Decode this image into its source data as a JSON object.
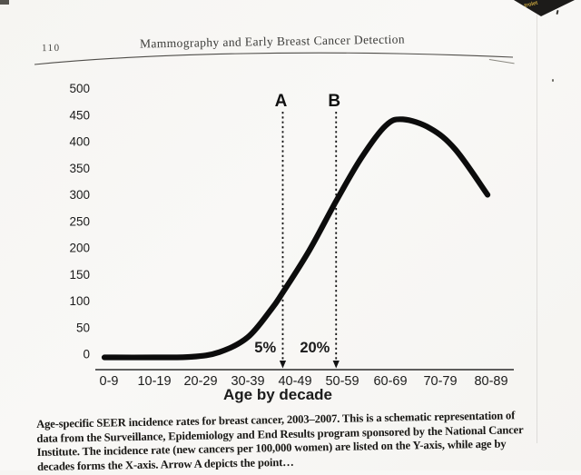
{
  "page": {
    "number": "110",
    "running_header": "Mammography and Early Breast Cancer Detection"
  },
  "chart_data": {
    "type": "line",
    "title": "",
    "xlabel": "Age by decade",
    "ylabel": "",
    "categories": [
      "0-9",
      "10-19",
      "20-29",
      "30-39",
      "40-49",
      "50-59",
      "60-69",
      "70-79",
      "80-89"
    ],
    "yticks": [
      0,
      50,
      100,
      150,
      200,
      250,
      300,
      350,
      400,
      450,
      500
    ],
    "ylim": [
      0,
      500
    ],
    "grid": false,
    "legend": "none",
    "series": [
      {
        "name": "Age-specific SEER breast cancer incidence rate (new cancers per 100,000 women)",
        "points": [
          [
            -0.1,
            -6
          ],
          [
            1,
            -6
          ],
          [
            1.8,
            -5
          ],
          [
            2.4,
            4
          ],
          [
            3,
            32
          ],
          [
            3.5,
            85
          ],
          [
            3.74,
            116
          ],
          [
            4.3,
            195
          ],
          [
            4.87,
            288
          ],
          [
            5.4,
            370
          ],
          [
            5.9,
            430
          ],
          [
            6.25,
            442
          ],
          [
            6.8,
            425
          ],
          [
            7.3,
            385
          ],
          [
            7.93,
            300
          ]
        ]
      }
    ],
    "annotations": {
      "arrows": [
        {
          "label": "A",
          "x": 3.74
        },
        {
          "label": "B",
          "x": 4.87
        }
      ],
      "percent_labels": [
        {
          "text": "5%",
          "x": 3.37
        },
        {
          "text": "20%",
          "x": 4.42
        }
      ]
    }
  },
  "caption": {
    "lines": [
      "Age-specific SEER incidence rates for breast cancer, 2003–2007. This is a schematic representation of",
      "data from the Surveillance, Epidemiology and End Results program sponsored by the National Cancer",
      "Institute. The incidence rate (new cancers per 100,000 women) are listed on the Y-axis, while age by",
      "decades forms the X-axis. Arrow A depicts the point…"
    ]
  },
  "artifacts": {
    "corner_sticker_text": "trolet"
  },
  "colors": {
    "ink": "#161616",
    "curve": "#0c0c0c",
    "axis": "#2b2b2b",
    "paper": "#f7f6f3",
    "sticker": "#1c1b19",
    "sticker_text": "#c9a63e"
  }
}
